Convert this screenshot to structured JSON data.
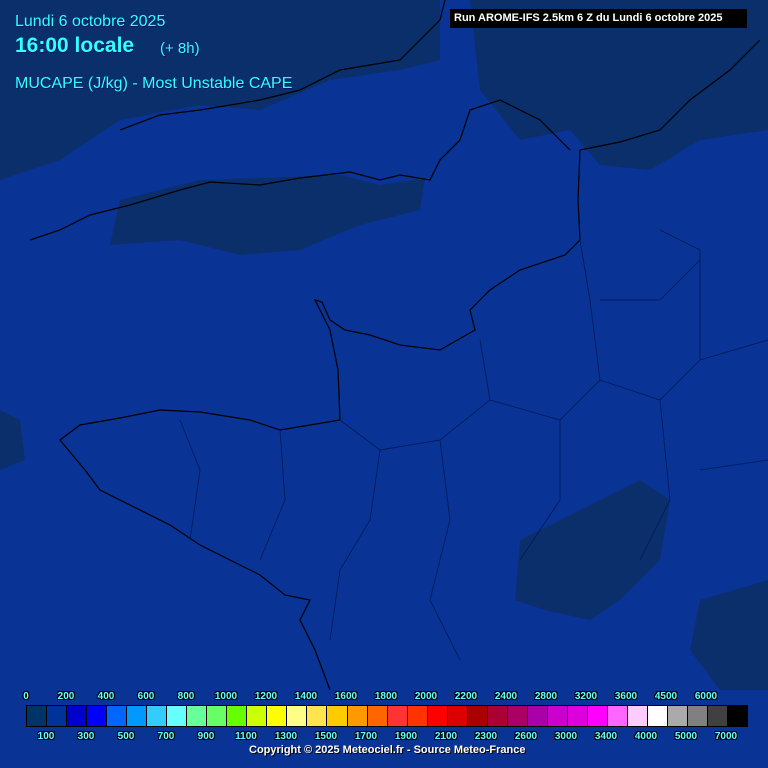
{
  "header": {
    "date": "Lundi 6 octobre 2025",
    "time": "16:00 locale",
    "lead": "(+ 8h)",
    "parameter": "MUCAPE (J/kg) - Most Unstable CAPE",
    "run": "Run AROME-IFS 2.5km 6 Z du Lundi 6 octobre 2025"
  },
  "legend": {
    "unit": "J/kg",
    "colors": [
      "#003366",
      "#003399",
      "#0000cc",
      "#0000ff",
      "#0066ff",
      "#0099ff",
      "#33ccff",
      "#66ffff",
      "#66ff99",
      "#66ff66",
      "#66ff00",
      "#ccff00",
      "#ffff00",
      "#ffff88",
      "#ffe44d",
      "#ffcc00",
      "#ff9900",
      "#ff6600",
      "#ff3333",
      "#ff3300",
      "#ff0000",
      "#dd0000",
      "#aa0000",
      "#aa0033",
      "#aa0066",
      "#aa00aa",
      "#cc00cc",
      "#dd00dd",
      "#ff00ff",
      "#ff66ff",
      "#ffccff",
      "#ffffff",
      "#aaaaaa",
      "#808080",
      "#404040",
      "#000000"
    ],
    "top_labels": [
      "0",
      "200",
      "400",
      "600",
      "800",
      "1000",
      "1200",
      "1400",
      "1600",
      "1800",
      "2000",
      "2200",
      "2400",
      "2800",
      "3200",
      "3600",
      "4500",
      "6000"
    ],
    "bottom_labels": [
      "100",
      "300",
      "500",
      "700",
      "900",
      "1100",
      "1300",
      "1500",
      "1700",
      "1900",
      "2100",
      "2300",
      "2600",
      "3000",
      "3400",
      "4000",
      "5000",
      "7000"
    ]
  },
  "map": {
    "region": "Nord-Ouest France / Manche",
    "field_colors": {
      "low": "#0a3396",
      "lowest": "#0a2f6b"
    }
  },
  "footer": {
    "copyright": "Copyright © 2025 Meteociel.fr - Source Meteo-France"
  }
}
